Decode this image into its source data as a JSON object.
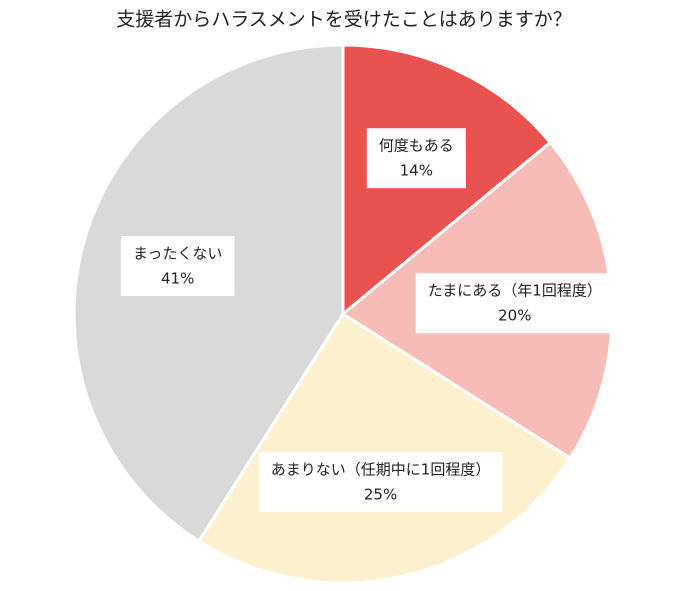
{
  "chart_data": {
    "type": "pie",
    "title": "支援者からハラスメントを受けたことはありますか？",
    "categories": [
      "何度もある",
      "たまにある（年1回程度）",
      "あまりない（任期中に1回程度）",
      "まったくない"
    ],
    "values": [
      14,
      20,
      25,
      41
    ],
    "value_labels": [
      "14%",
      "20%",
      "25%",
      "41%"
    ],
    "colors": [
      "#e8534f",
      "#f5bdb5",
      "#fcf0cf",
      "#d9d9d9"
    ]
  }
}
